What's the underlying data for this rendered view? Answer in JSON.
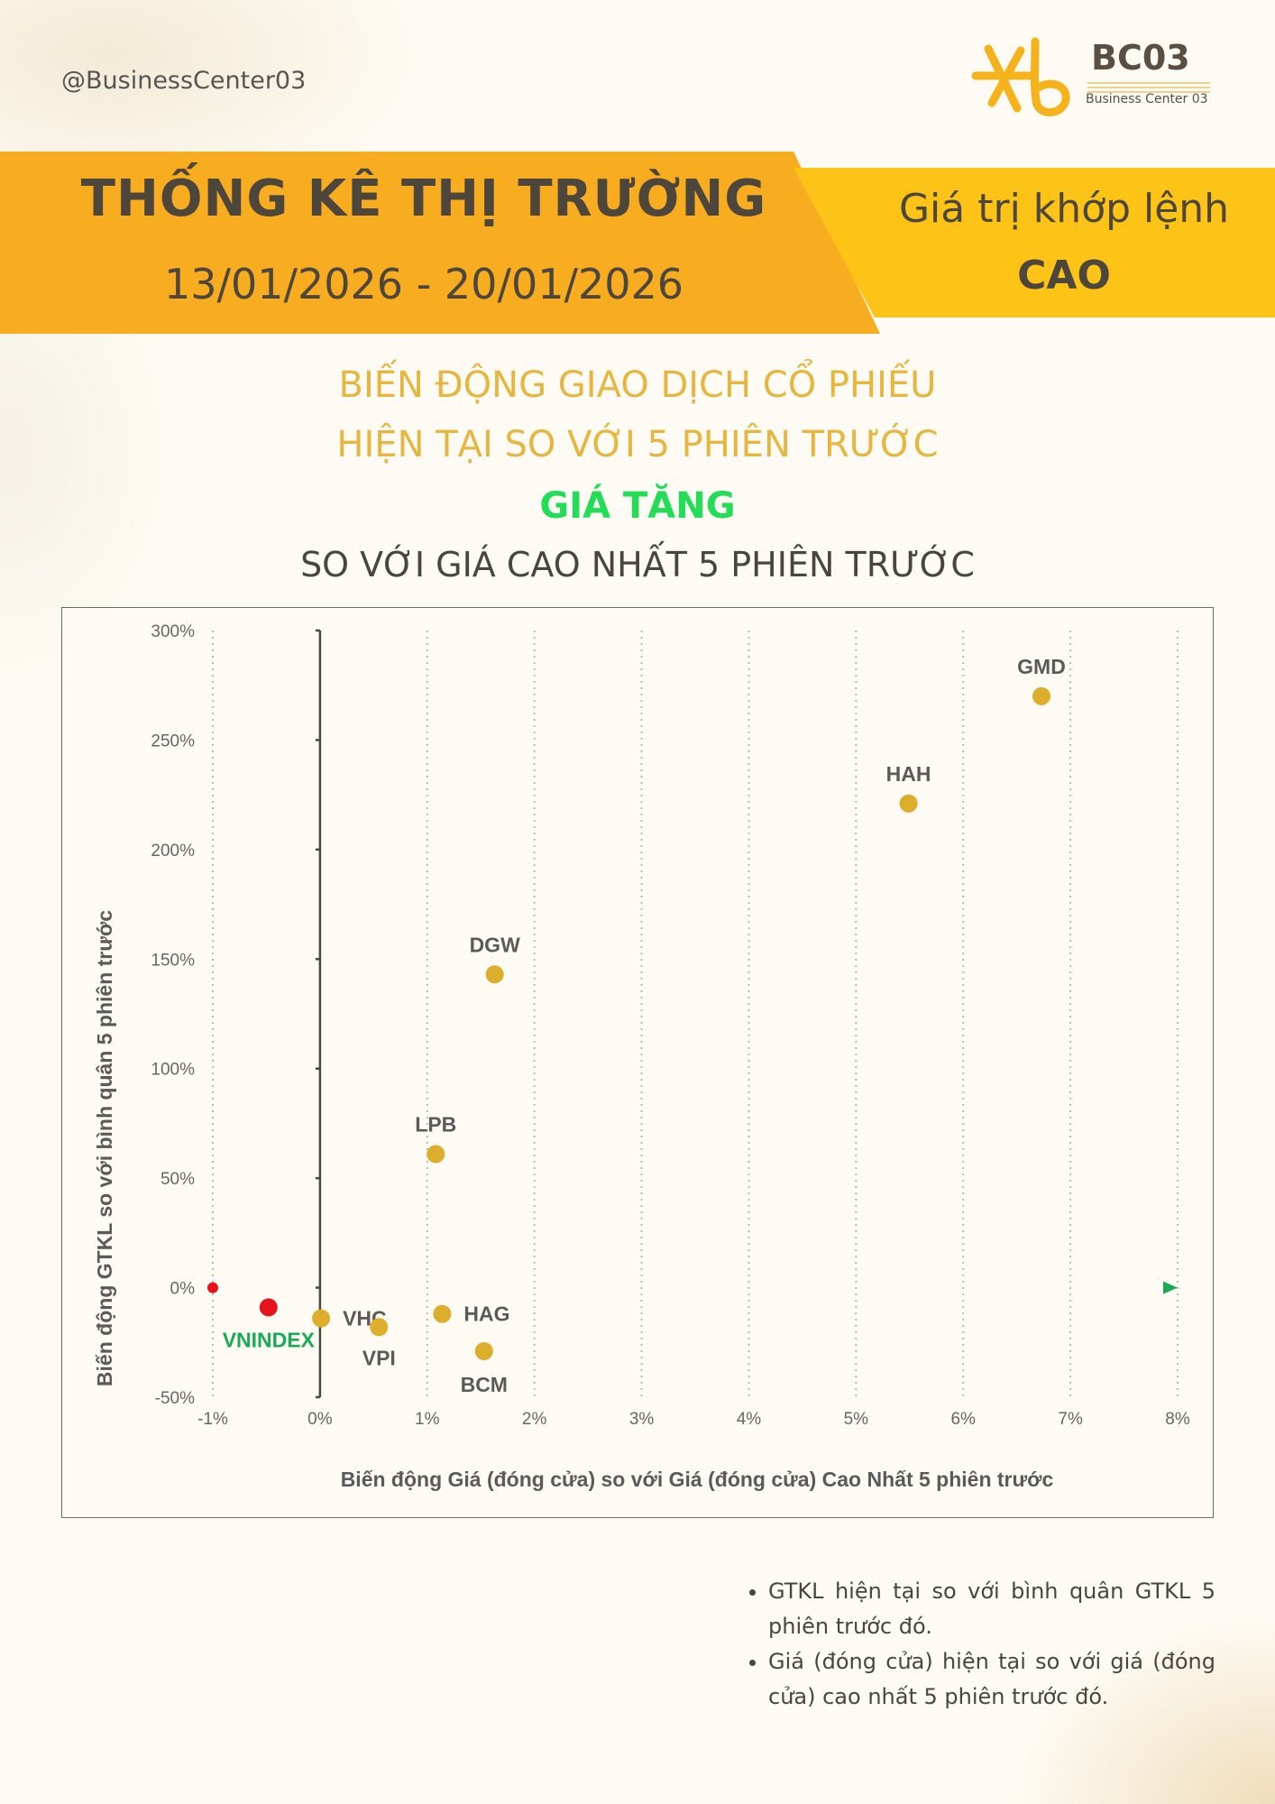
{
  "header": {
    "handle": "@BusinessCenter03",
    "logo_brand": "BC03",
    "logo_sub": "Business Center 03",
    "title": "THỐNG KÊ THỊ TRƯỜNG",
    "date_range": "13/01/2026 - 20/01/2026",
    "badge_line1": "Giá trị khớp lệnh",
    "badge_line2": "CAO"
  },
  "subtitle": {
    "line1": "BIẾN ĐỘNG GIAO DỊCH CỔ PHIẾU",
    "line2": "HIỆN TẠI SO VỚI 5 PHIÊN TRƯỚC",
    "line3": "GIÁ TĂNG",
    "line4": "SO VỚI GIÁ CAO NHẤT 5 PHIÊN TRƯỚC"
  },
  "chart_data": {
    "type": "scatter",
    "xlabel": "Biến động Giá (đóng cửa) so với Giá (đóng cửa) Cao Nhất 5 phiên trước",
    "ylabel": "Biến động GTKL so với bình quân 5 phiên trước",
    "xlim": [
      -1,
      8
    ],
    "ylim": [
      -50,
      300
    ],
    "x_ticks": [
      -1,
      0,
      1,
      2,
      3,
      4,
      5,
      6,
      7,
      8
    ],
    "x_tick_labels": [
      "-1%",
      "0%",
      "1%",
      "2%",
      "3%",
      "4%",
      "5%",
      "6%",
      "7%",
      "8%"
    ],
    "y_ticks": [
      -50,
      0,
      50,
      100,
      150,
      200,
      250,
      300
    ],
    "y_tick_labels": [
      "-50%",
      "0%",
      "50%",
      "100%",
      "150%",
      "200%",
      "250%",
      "300%"
    ],
    "grid": "vertical dotted",
    "points": [
      {
        "label": "GMD",
        "x": 6.73,
        "y": 270,
        "color": "#dcae2c",
        "label_pos": "above"
      },
      {
        "label": "HAH",
        "x": 5.49,
        "y": 221,
        "color": "#dcae2c",
        "label_pos": "above"
      },
      {
        "label": "DGW",
        "x": 1.63,
        "y": 143,
        "color": "#dcae2c",
        "label_pos": "above"
      },
      {
        "label": "LPB",
        "x": 1.08,
        "y": 61,
        "color": "#dcae2c",
        "label_pos": "above"
      },
      {
        "label": "VHC",
        "x": 0.01,
        "y": -14,
        "color": "#dcae2c",
        "label_pos": "right"
      },
      {
        "label": "VPI",
        "x": 0.55,
        "y": -18,
        "color": "#dcae2c",
        "label_pos": "below"
      },
      {
        "label": "HAG",
        "x": 1.14,
        "y": -12,
        "color": "#dcae2c",
        "label_pos": "right"
      },
      {
        "label": "BCM",
        "x": 1.53,
        "y": -29,
        "color": "#dcae2c",
        "label_pos": "below"
      },
      {
        "label": "VNINDEX",
        "x": -0.48,
        "y": -9,
        "color": "#e8141d",
        "label_pos": "below",
        "label_color": "#1aaa55"
      }
    ],
    "arrow_colors": [
      "#e8141d",
      "#f2c21a",
      "#1aaa55"
    ]
  },
  "notes": [
    "GTKL hiện tại so với bình quân GTKL 5 phiên trước đó.",
    "Giá (đóng cửa) hiện tại so với giá (đóng cửa) cao nhất 5 phiên trước đó."
  ]
}
